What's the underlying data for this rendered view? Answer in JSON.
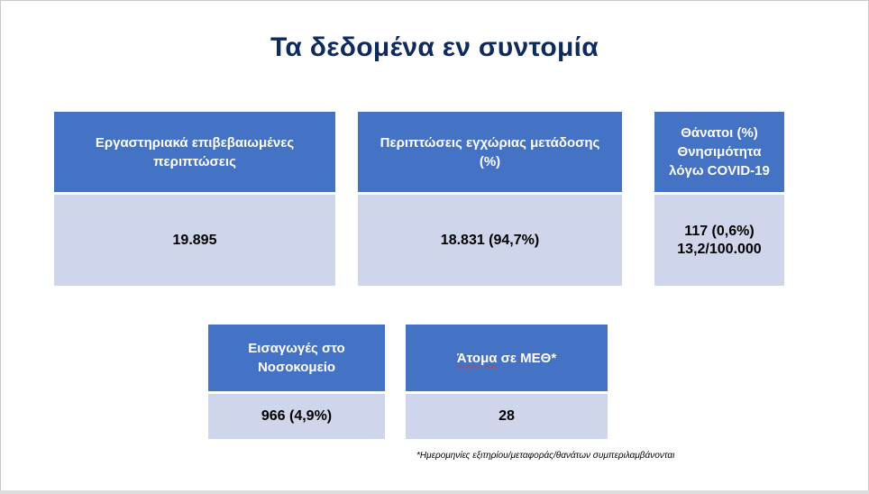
{
  "title": "Τα δεδομένα εν συντομία",
  "cards": [
    {
      "header": "Εργαστηριακά επιβεβαιωμένες\nπεριπτώσεις",
      "value": "19.895"
    },
    {
      "header": "Περιπτώσεις εγχώριας μετάδοσης\n(%)",
      "value": "18.831 (94,7%)"
    },
    {
      "header": "Θάνατοι (%)\nΘνησιμότητα\nλόγω COVID-19",
      "value": "117 (0,6%)\n13,2/100.000"
    },
    {
      "header": "Εισαγωγές στο\nΝοσοκομείο",
      "value": "966 (4,9%)"
    },
    {
      "header_underlined": "Άτομα",
      "header_rest": " σε ΜΕΘ*",
      "value": "28"
    }
  ],
  "footnote": "*Ημερομηνίες εξιτηρίου/μεταφοράς/θανάτων συμπεριλαμβάνονται",
  "colors": {
    "header_bg": "#4472c4",
    "value_bg": "#cfd5ea",
    "title": "#0f2a5c"
  }
}
